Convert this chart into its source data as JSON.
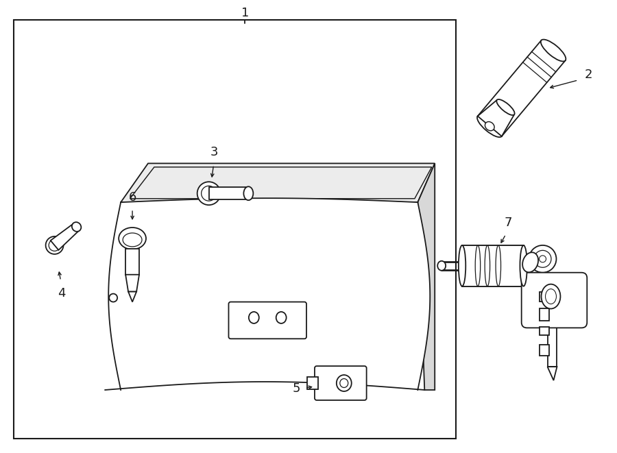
{
  "bg": "#ffffff",
  "lc": "#1a1a1a",
  "lw": 1.3,
  "fs": [
    9.0,
    6.61
  ],
  "dpi": 100
}
